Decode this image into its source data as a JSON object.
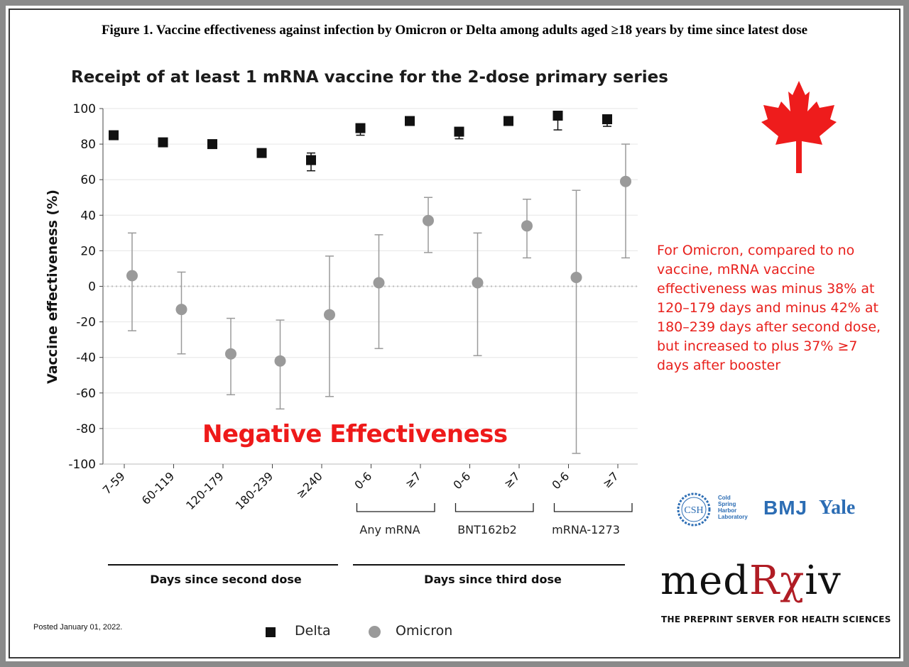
{
  "figure_title": "Figure 1. Vaccine effectiveness against infection by Omicron or Delta among adults aged ≥18 years by time since latest dose",
  "chart_title": "Receipt of at least 1 mRNA vaccine for the 2-dose primary series",
  "note": "For Omicron, compared to no vaccine, mRNA vaccine effectiveness was minus 38% at 120–179 days and minus 42% at 180–239 days after second dose, but increased to plus 37% ≥7 days after booster",
  "negative_label": "Negative Effectiveness",
  "posted": "Posted January 01, 2022.",
  "legend": {
    "delta": "Delta",
    "omicron": "Omicron"
  },
  "logos": {
    "csh_mark": "CSH",
    "csh_lines": [
      "Cold",
      "Spring",
      "Harbor",
      "Laboratory"
    ],
    "bmj": "BMJ",
    "yale": "Yale",
    "medrxiv_a": "med",
    "medrxiv_b": "Rχ",
    "medrxiv_c": "iv",
    "medrxiv_tagline": "THE PREPRINT SERVER FOR HEALTH SCIENCES"
  },
  "colors": {
    "delta": "#111111",
    "omicron": "#9a9a9a",
    "note": "#e8201c",
    "maple": "#ee1c1c"
  },
  "icons": [
    "canada-maple-leaf-icon"
  ],
  "chart_data": {
    "type": "scatter",
    "ylabel": "Vaccine effectiveness (%)",
    "ylim": [
      -100,
      100
    ],
    "yticks": [
      100,
      80,
      60,
      40,
      20,
      0,
      -20,
      -40,
      -60,
      -80,
      -100
    ],
    "grid": true,
    "reference_line": 0,
    "legend_position": "bottom",
    "categories": [
      "7-59",
      "60-119",
      "120-179",
      "180-239",
      "≥240",
      "0-6",
      "≥7",
      "0-6",
      "≥7",
      "0-6",
      "≥7"
    ],
    "subgroups": [
      {
        "label": "Any mRNA",
        "from": 5,
        "to": 6
      },
      {
        "label": "BNT162b2",
        "from": 7,
        "to": 8
      },
      {
        "label": "mRNA-1273",
        "from": 9,
        "to": 10
      }
    ],
    "x_groups": [
      {
        "label": "Days since second dose",
        "from": 0,
        "to": 4
      },
      {
        "label": "Days since third dose",
        "from": 5,
        "to": 10
      }
    ],
    "series": [
      {
        "name": "Delta",
        "marker": "square",
        "values": [
          85,
          81,
          80,
          75,
          71,
          89,
          93,
          87,
          93,
          96,
          94
        ],
        "ci_low": [
          null,
          null,
          null,
          null,
          65,
          85,
          null,
          83,
          null,
          88,
          90
        ],
        "ci_high": [
          null,
          null,
          null,
          null,
          75,
          90,
          null,
          88,
          null,
          97,
          95
        ]
      },
      {
        "name": "Omicron",
        "marker": "circle",
        "values": [
          6,
          -13,
          -38,
          -42,
          -16,
          2,
          37,
          2,
          34,
          5,
          59
        ],
        "ci_low": [
          -25,
          -38,
          -61,
          -69,
          -62,
          -35,
          19,
          -39,
          16,
          -94,
          16
        ],
        "ci_high": [
          30,
          8,
          -18,
          -19,
          17,
          29,
          50,
          30,
          49,
          54,
          80
        ]
      }
    ]
  }
}
